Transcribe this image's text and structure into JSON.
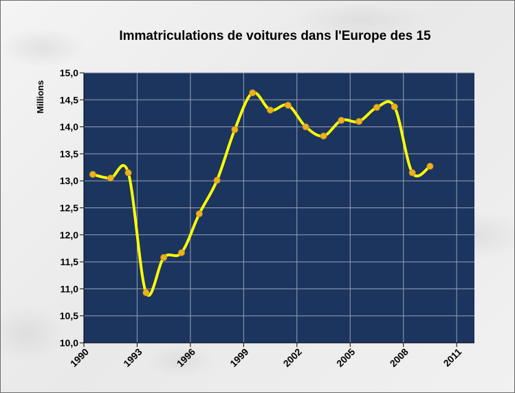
{
  "chart_data": {
    "type": "line",
    "title": "Immatriculations de voitures dans l'Europe des 15",
    "xlabel": "",
    "ylabel": "Millions",
    "xlim": [
      1990,
      2012
    ],
    "ylim": [
      10.0,
      15.0
    ],
    "x_ticks": [
      "1990",
      "1993",
      "1996",
      "1999",
      "2002",
      "2005",
      "2008",
      "2011"
    ],
    "y_ticks": [
      "10,0",
      "10,5",
      "11,0",
      "11,5",
      "12,0",
      "12,5",
      "13,0",
      "13,5",
      "14,0",
      "14,5",
      "15,0"
    ],
    "grid": true,
    "legend": "none",
    "series": [
      {
        "x": [
          1990.5,
          1991.5,
          1992.5,
          1993.5,
          1994.5,
          1995.5,
          1996.5,
          1997.5,
          1998.5,
          1999.5,
          2000.5,
          2001.5,
          2002.5,
          2003.5,
          2004.5,
          2005.5,
          2006.5,
          2007.5,
          2008.5,
          2009.5
        ],
        "values": [
          13.12,
          13.05,
          13.15,
          10.93,
          11.58,
          11.67,
          12.39,
          13.01,
          13.95,
          14.63,
          14.31,
          14.4,
          14.0,
          13.83,
          14.12,
          14.1,
          14.36,
          14.37,
          13.15,
          13.27
        ]
      }
    ],
    "colors": {
      "plot_background": "#1b355f",
      "line": "#ffff00",
      "marker": "#ecb21c",
      "grid": "#9aa4b4"
    }
  }
}
